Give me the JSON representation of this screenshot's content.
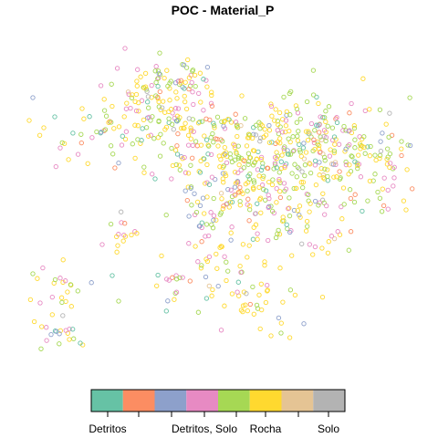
{
  "chart_data": {
    "type": "scatter",
    "title": "POC - Material_P",
    "legend": {
      "position": "bottom",
      "colors": [
        "#66C2A5",
        "#FC8D62",
        "#8DA0CB",
        "#E78AC3",
        "#A6D854",
        "#FFD92F",
        "#E5C494",
        "#B3B3B3"
      ],
      "tick_labels": [
        "Detritos",
        "Detritos, Solo",
        "Rocha",
        "Solo"
      ]
    },
    "axes": "none",
    "grid": false
  }
}
